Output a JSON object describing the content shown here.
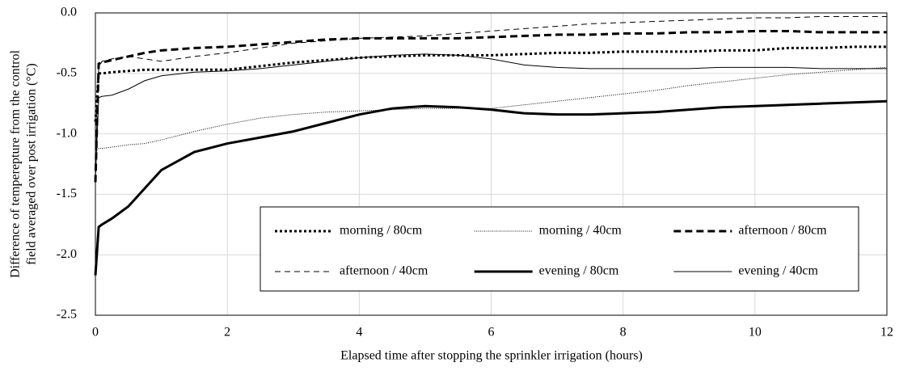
{
  "chart_data": {
    "type": "line",
    "x_label": "Elapsed time after stopping the sprinkler irrigation (hours)",
    "y_label": [
      "Difference of temperepture from the control",
      "field averaged over post irrigation (°C)"
    ],
    "x": [
      0,
      0.05,
      0.1,
      0.25,
      0.5,
      0.75,
      1,
      1.5,
      2,
      2.5,
      3,
      3.5,
      4,
      4.5,
      5,
      5.5,
      6,
      6.5,
      7,
      7.5,
      8,
      8.5,
      9,
      9.5,
      10,
      10.5,
      11,
      11.5,
      12
    ],
    "xlim": [
      0,
      12
    ],
    "xticks": [
      0,
      2,
      4,
      6,
      8,
      10,
      12
    ],
    "ylim": [
      -2.5,
      0
    ],
    "yticks": [
      {
        "value": -2.5,
        "label": "-2.5"
      },
      {
        "value": -2,
        "label": "-2.0"
      },
      {
        "value": -1.5,
        "label": "-1.5"
      },
      {
        "value": -1,
        "label": "-1.0"
      },
      {
        "value": -0.5,
        "label": "-0.5"
      },
      {
        "value": 0,
        "label": "0.0"
      }
    ],
    "grid": true,
    "legend": "lower right",
    "series": [
      {
        "name": "morning / 80cm",
        "color": "#000000",
        "line_style": "dotted",
        "line_weight": "heavy",
        "values": [
          -0.9,
          -0.5,
          -0.5,
          -0.49,
          -0.48,
          -0.47,
          -0.47,
          -0.47,
          -0.47,
          -0.44,
          -0.41,
          -0.39,
          -0.37,
          -0.36,
          -0.35,
          -0.35,
          -0.35,
          -0.34,
          -0.33,
          -0.33,
          -0.32,
          -0.32,
          -0.32,
          -0.31,
          -0.31,
          -0.29,
          -0.29,
          -0.28,
          -0.28
        ]
      },
      {
        "name": "morning / 40cm",
        "color": "#000000",
        "line_style": "dotted",
        "line_weight": "light",
        "values": [
          -1.15,
          -1.12,
          -1.12,
          -1.11,
          -1.09,
          -1.08,
          -1.05,
          -0.98,
          -0.92,
          -0.87,
          -0.84,
          -0.82,
          -0.81,
          -0.8,
          -0.79,
          -0.79,
          -0.79,
          -0.76,
          -0.73,
          -0.7,
          -0.67,
          -0.64,
          -0.6,
          -0.57,
          -0.54,
          -0.51,
          -0.49,
          -0.47,
          -0.45
        ]
      },
      {
        "name": "afternoon / 80cm",
        "color": "#000000",
        "line_style": "dashed",
        "line_weight": "heavy",
        "values": [
          -1.4,
          -0.42,
          -0.41,
          -0.39,
          -0.36,
          -0.33,
          -0.31,
          -0.29,
          -0.28,
          -0.26,
          -0.24,
          -0.22,
          -0.21,
          -0.21,
          -0.21,
          -0.21,
          -0.2,
          -0.19,
          -0.18,
          -0.18,
          -0.17,
          -0.17,
          -0.16,
          -0.16,
          -0.15,
          -0.15,
          -0.16,
          -0.16,
          -0.16
        ]
      },
      {
        "name": "afternoon / 40cm",
        "color": "#000000",
        "line_style": "dashed",
        "line_weight": "light",
        "values": [
          -1.3,
          -0.45,
          -0.4,
          -0.38,
          -0.36,
          -0.38,
          -0.4,
          -0.36,
          -0.33,
          -0.29,
          -0.25,
          -0.23,
          -0.21,
          -0.2,
          -0.19,
          -0.17,
          -0.15,
          -0.13,
          -0.11,
          -0.09,
          -0.08,
          -0.07,
          -0.06,
          -0.05,
          -0.04,
          -0.04,
          -0.03,
          -0.03,
          -0.03
        ]
      },
      {
        "name": "evening / 80cm",
        "color": "#000000",
        "line_style": "solid",
        "line_weight": "heavy",
        "values": [
          -2.17,
          -1.77,
          -1.75,
          -1.7,
          -1.6,
          -1.45,
          -1.3,
          -1.15,
          -1.08,
          -1.03,
          -0.98,
          -0.91,
          -0.84,
          -0.79,
          -0.77,
          -0.78,
          -0.8,
          -0.83,
          -0.84,
          -0.84,
          -0.83,
          -0.82,
          -0.8,
          -0.78,
          -0.77,
          -0.76,
          -0.75,
          -0.74,
          -0.73
        ]
      },
      {
        "name": "evening / 40cm",
        "color": "#000000",
        "line_style": "solid",
        "line_weight": "light",
        "values": [
          -1.38,
          -0.7,
          -0.69,
          -0.68,
          -0.63,
          -0.56,
          -0.52,
          -0.49,
          -0.48,
          -0.46,
          -0.43,
          -0.4,
          -0.37,
          -0.35,
          -0.34,
          -0.35,
          -0.38,
          -0.43,
          -0.45,
          -0.46,
          -0.46,
          -0.46,
          -0.46,
          -0.45,
          -0.45,
          -0.45,
          -0.46,
          -0.46,
          -0.46
        ]
      }
    ]
  }
}
